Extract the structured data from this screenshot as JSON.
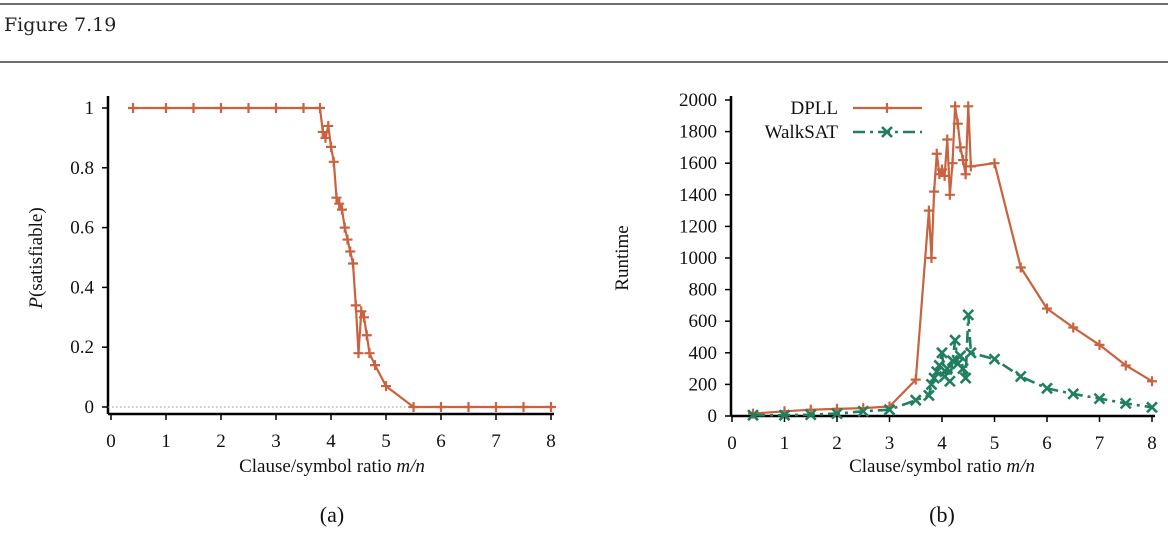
{
  "figure_title": "Figure 7.19",
  "chart_data": [
    {
      "type": "line",
      "panel_label": "(a)",
      "xlabel": "Clause/symbol ratio m/n",
      "xlabel_plain": "Clause/symbol ratio ",
      "xlabel_italic": "m/n",
      "ylabel": "P(satisfiable)",
      "ylabel_italic": "P",
      "ylabel_plain": "(satisfiable)",
      "xlim": [
        0,
        8
      ],
      "ylim": [
        0,
        1
      ],
      "xticks": [
        "0",
        "1",
        "2",
        "3",
        "4",
        "5",
        "6",
        "7",
        "8"
      ],
      "yticks": [
        "0",
        "0.2",
        "0.4",
        "0.6",
        "0.8",
        "1"
      ],
      "grid": false,
      "reference_line": {
        "y": 0,
        "style": "dotted"
      },
      "series": [
        {
          "name": "P(satisfiable)",
          "color": "#c9623e",
          "marker": "plus",
          "x": [
            0.4,
            1.0,
            1.5,
            2.0,
            2.5,
            3.0,
            3.5,
            3.8,
            3.85,
            3.9,
            3.95,
            4.0,
            4.05,
            4.1,
            4.15,
            4.2,
            4.25,
            4.3,
            4.35,
            4.4,
            4.45,
            4.5,
            4.55,
            4.6,
            4.65,
            4.7,
            4.8,
            5.0,
            5.5,
            6.0,
            6.5,
            7.0,
            7.5,
            8.0
          ],
          "y": [
            1.0,
            1.0,
            1.0,
            1.0,
            1.0,
            1.0,
            1.0,
            1.0,
            0.92,
            0.9,
            0.94,
            0.87,
            0.82,
            0.7,
            0.68,
            0.66,
            0.6,
            0.56,
            0.52,
            0.48,
            0.34,
            0.18,
            0.32,
            0.3,
            0.24,
            0.18,
            0.14,
            0.07,
            0.0,
            0.0,
            0.0,
            0.0,
            0.0,
            0.0
          ]
        }
      ]
    },
    {
      "type": "line",
      "panel_label": "(b)",
      "xlabel": "Clause/symbol ratio m/n",
      "xlabel_plain": "Clause/symbol ratio ",
      "xlabel_italic": "m/n",
      "ylabel": "Runtime",
      "xlim": [
        0,
        8
      ],
      "ylim": [
        0,
        2000
      ],
      "xticks": [
        "0",
        "1",
        "2",
        "3",
        "4",
        "5",
        "6",
        "7",
        "8"
      ],
      "yticks": [
        "0",
        "200",
        "400",
        "600",
        "800",
        "1000",
        "1200",
        "1400",
        "1600",
        "1800",
        "2000"
      ],
      "grid": false,
      "legend": {
        "placement": "top-left",
        "entries": [
          "DPLL",
          "WalkSAT"
        ]
      },
      "series": [
        {
          "name": "DPLL",
          "color": "#c9623e",
          "marker": "plus",
          "style": "solid",
          "x": [
            0.4,
            1.0,
            1.5,
            2.0,
            2.5,
            3.0,
            3.5,
            3.75,
            3.8,
            3.85,
            3.9,
            3.95,
            4.0,
            4.05,
            4.1,
            4.15,
            4.2,
            4.25,
            4.3,
            4.35,
            4.4,
            4.45,
            4.5,
            4.55,
            5.0,
            5.5,
            6.0,
            6.5,
            7.0,
            7.5,
            8.0
          ],
          "y": [
            15,
            30,
            40,
            45,
            50,
            60,
            230,
            1300,
            1000,
            1420,
            1660,
            1530,
            1560,
            1520,
            1750,
            1400,
            1600,
            1960,
            1850,
            1700,
            1620,
            1530,
            1960,
            1580,
            1600,
            940,
            680,
            560,
            450,
            320,
            220
          ]
        },
        {
          "name": "WalkSAT",
          "color": "#1f7f5f",
          "marker": "x",
          "style": "dash-dot",
          "x": [
            0.4,
            1.0,
            1.5,
            2.0,
            2.5,
            3.0,
            3.5,
            3.75,
            3.8,
            3.85,
            3.9,
            3.95,
            4.0,
            4.05,
            4.1,
            4.15,
            4.2,
            4.25,
            4.3,
            4.35,
            4.4,
            4.45,
            4.5,
            4.55,
            5.0,
            5.5,
            6.0,
            6.5,
            7.0,
            7.5,
            8.0
          ],
          "y": [
            5,
            5,
            8,
            15,
            30,
            40,
            100,
            130,
            200,
            240,
            280,
            320,
            400,
            250,
            300,
            220,
            350,
            480,
            330,
            380,
            300,
            240,
            640,
            400,
            360,
            250,
            175,
            140,
            110,
            80,
            55
          ]
        }
      ]
    }
  ]
}
